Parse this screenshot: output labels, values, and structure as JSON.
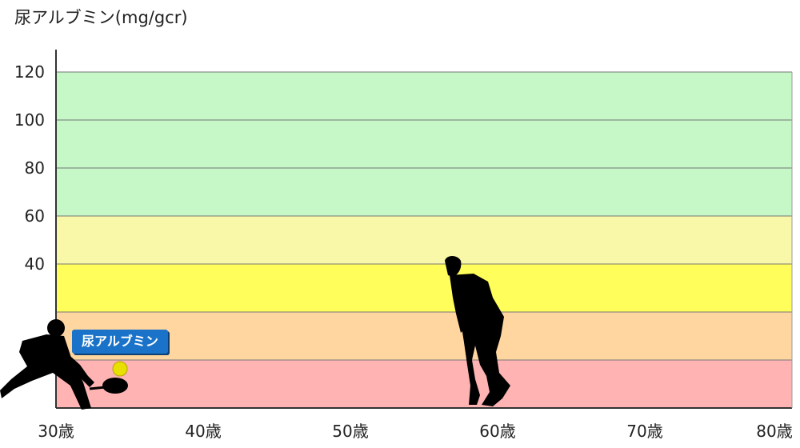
{
  "chart_data": {
    "type": "area",
    "ylabel": "尿アルブミン(mg/gcr)",
    "y_ticks": [
      40,
      60,
      80,
      100,
      120
    ],
    "x_ticks": [
      "30歳",
      "40歳",
      "50歳",
      "60歳",
      "70歳",
      "80歳"
    ],
    "x_range": [
      30,
      80
    ],
    "bands": [
      {
        "from": 0,
        "to": 10,
        "color": "#ffb3b3"
      },
      {
        "from": 10,
        "to": 20,
        "color": "#ffd6a0"
      },
      {
        "from": 20,
        "to": 40,
        "color": "#fffe5a"
      },
      {
        "from": 40,
        "to": 60,
        "color": "#f8f8a8"
      },
      {
        "from": 60,
        "to": 140,
        "color": "#c6f7c6"
      }
    ],
    "badge_label": "尿アルブミン",
    "grid": true,
    "colors": {
      "grid_line": "#777777",
      "axis": "#333333",
      "badge": "#1a73c8"
    }
  }
}
